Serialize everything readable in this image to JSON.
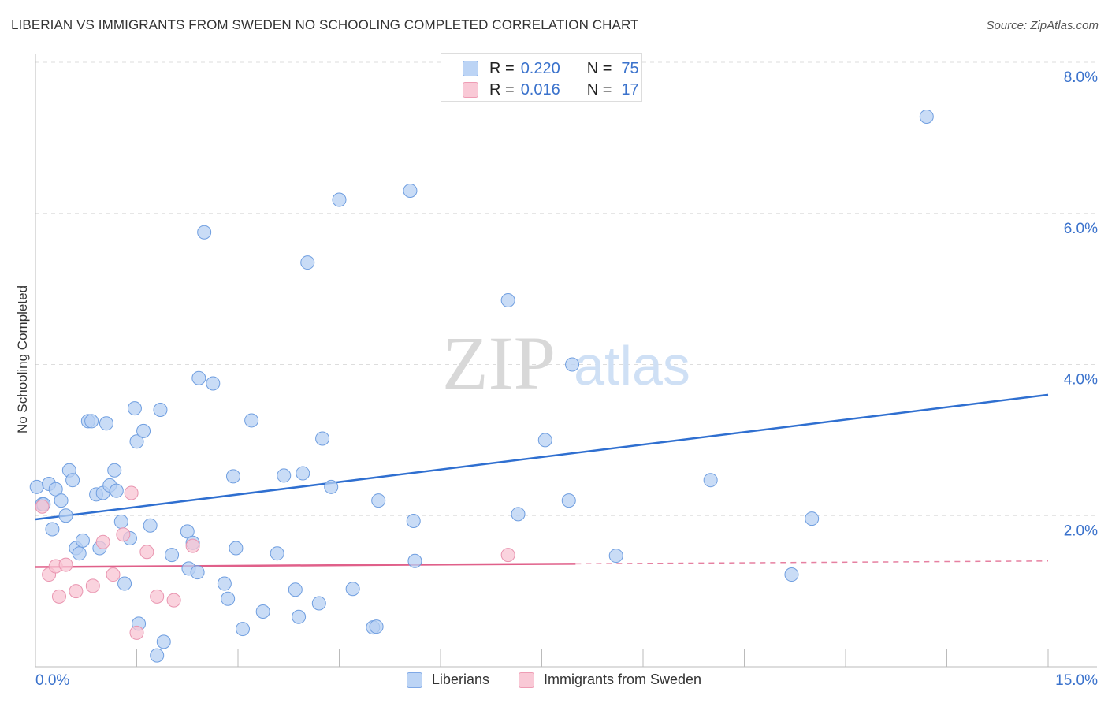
{
  "header": {
    "title": "LIBERIAN VS IMMIGRANTS FROM SWEDEN NO SCHOOLING COMPLETED CORRELATION CHART",
    "source": "Source: ZipAtlas.com"
  },
  "watermark": {
    "zip": "ZIP",
    "atlas": "atlas"
  },
  "stats_legend": {
    "rows": [
      {
        "r_label": "R =",
        "r_value": "0.220",
        "n_label": "N =",
        "n_value": "75",
        "color": "#7fa8e6"
      },
      {
        "r_label": "R =",
        "r_value": "0.016",
        "n_label": "N =",
        "n_value": "17",
        "color": "#ee9cb4"
      }
    ]
  },
  "colors": {
    "blue_fill": "#b7d0f3",
    "blue_stroke": "#6f9ee0",
    "blue_line": "#2f6fd0",
    "pink_fill": "#f8c4d3",
    "pink_stroke": "#e995b0",
    "pink_line": "#e0608a",
    "axis_text": "#3a72cc",
    "grid": "#dddddd"
  },
  "chart_data": {
    "type": "scatter",
    "title": "LIBERIAN VS IMMIGRANTS FROM SWEDEN NO SCHOOLING COMPLETED CORRELATION CHART",
    "xlabel": "",
    "ylabel": "No Schooling Completed",
    "xlim": [
      0,
      15
    ],
    "ylim": [
      0,
      8.3
    ],
    "x_tick_labels": [
      "0.0%",
      "15.0%"
    ],
    "y_ticks": [
      2,
      4,
      6,
      8
    ],
    "y_tick_labels": [
      "2.0%",
      "4.0%",
      "6.0%",
      "8.0%"
    ],
    "grid": true,
    "legend": [
      "Liberians",
      "Immigrants from Sweden"
    ],
    "series": [
      {
        "name": "Liberians",
        "trend": {
          "x": [
            0,
            15
          ],
          "y": [
            1.95,
            3.6
          ]
        },
        "points": [
          [
            0.02,
            2.38
          ],
          [
            0.1,
            2.15
          ],
          [
            0.2,
            2.42
          ],
          [
            0.25,
            1.82
          ],
          [
            0.3,
            2.35
          ],
          [
            0.38,
            2.2
          ],
          [
            0.45,
            2.0
          ],
          [
            0.5,
            2.6
          ],
          [
            0.55,
            2.47
          ],
          [
            0.6,
            1.57
          ],
          [
            0.65,
            1.5
          ],
          [
            0.7,
            1.67
          ],
          [
            0.78,
            3.25
          ],
          [
            0.83,
            3.25
          ],
          [
            0.9,
            2.28
          ],
          [
            0.95,
            1.57
          ],
          [
            1.0,
            2.3
          ],
          [
            1.05,
            3.22
          ],
          [
            1.1,
            2.4
          ],
          [
            1.17,
            2.6
          ],
          [
            1.2,
            2.33
          ],
          [
            1.27,
            1.92
          ],
          [
            1.32,
            1.1
          ],
          [
            1.4,
            1.7
          ],
          [
            1.47,
            3.42
          ],
          [
            1.5,
            2.98
          ],
          [
            1.53,
            0.57
          ],
          [
            1.6,
            3.12
          ],
          [
            1.7,
            1.87
          ],
          [
            1.8,
            0.15
          ],
          [
            1.85,
            3.4
          ],
          [
            1.9,
            0.33
          ],
          [
            2.02,
            1.48
          ],
          [
            2.25,
            1.79
          ],
          [
            2.27,
            1.3
          ],
          [
            2.33,
            1.64
          ],
          [
            2.4,
            1.25
          ],
          [
            2.42,
            3.82
          ],
          [
            2.5,
            5.75
          ],
          [
            2.63,
            3.75
          ],
          [
            2.8,
            1.1
          ],
          [
            2.85,
            0.9
          ],
          [
            2.93,
            2.52
          ],
          [
            2.97,
            1.57
          ],
          [
            3.07,
            0.5
          ],
          [
            3.2,
            3.26
          ],
          [
            3.37,
            0.73
          ],
          [
            3.58,
            1.5
          ],
          [
            3.68,
            2.53
          ],
          [
            3.85,
            1.02
          ],
          [
            3.9,
            0.66
          ],
          [
            3.96,
            2.56
          ],
          [
            4.03,
            5.35
          ],
          [
            4.2,
            0.84
          ],
          [
            4.25,
            3.02
          ],
          [
            4.38,
            2.38
          ],
          [
            4.5,
            6.18
          ],
          [
            4.7,
            1.03
          ],
          [
            5.0,
            0.52
          ],
          [
            5.05,
            0.53
          ],
          [
            5.08,
            2.2
          ],
          [
            5.55,
            6.3
          ],
          [
            5.6,
            1.93
          ],
          [
            5.62,
            1.4
          ],
          [
            7.0,
            4.85
          ],
          [
            7.15,
            2.02
          ],
          [
            7.55,
            3.0
          ],
          [
            7.9,
            2.2
          ],
          [
            7.95,
            4.0
          ],
          [
            8.6,
            1.47
          ],
          [
            10.0,
            2.47
          ],
          [
            11.2,
            1.22
          ],
          [
            11.5,
            1.96
          ],
          [
            13.2,
            7.28
          ],
          [
            0.12,
            2.15
          ]
        ]
      },
      {
        "name": "Immigrants from Sweden",
        "trend": {
          "x": [
            0,
            15
          ],
          "y": [
            1.32,
            1.4
          ],
          "solid_until": 8
        },
        "points": [
          [
            0.1,
            2.12
          ],
          [
            0.2,
            1.22
          ],
          [
            0.3,
            1.33
          ],
          [
            0.35,
            0.93
          ],
          [
            0.45,
            1.35
          ],
          [
            0.6,
            1.0
          ],
          [
            0.85,
            1.07
          ],
          [
            1.0,
            1.65
          ],
          [
            1.15,
            1.22
          ],
          [
            1.3,
            1.75
          ],
          [
            1.42,
            2.3
          ],
          [
            1.5,
            0.45
          ],
          [
            1.65,
            1.52
          ],
          [
            1.8,
            0.93
          ],
          [
            2.05,
            0.88
          ],
          [
            2.33,
            1.6
          ],
          [
            7.0,
            1.48
          ]
        ]
      }
    ]
  }
}
